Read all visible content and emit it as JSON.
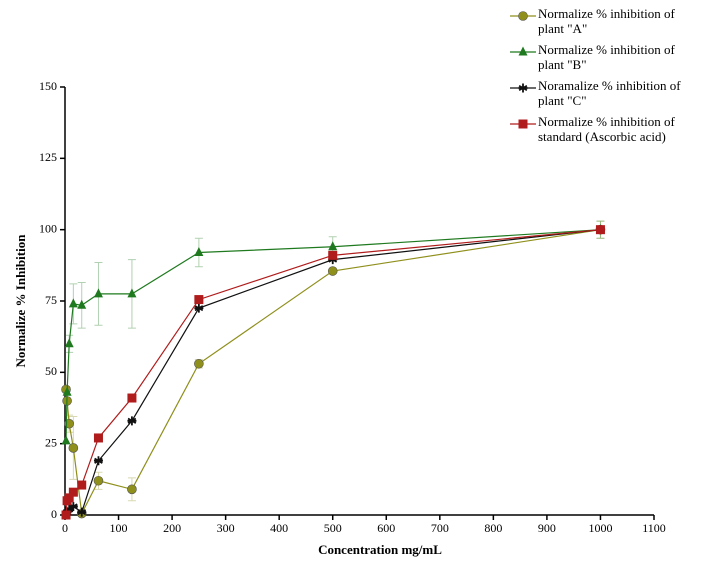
{
  "chart_data": {
    "type": "line",
    "xlabel": "Concentration mg/mL",
    "ylabel": "Normalize % Inhibition",
    "x": [
      1.95,
      3.9,
      7.8,
      15.6,
      31.25,
      62.5,
      125,
      250,
      500,
      1000
    ],
    "xlim": [
      0,
      1100
    ],
    "xticks": [
      0,
      100,
      200,
      300,
      400,
      500,
      600,
      700,
      800,
      900,
      1000,
      1100
    ],
    "ylim": [
      0,
      150
    ],
    "yticks": [
      0,
      25,
      50,
      75,
      100,
      125,
      150
    ],
    "series": [
      {
        "name": "Normalize % inhibition of plant \"A\"",
        "color": "#8f8f1c",
        "marker": "circle",
        "values": [
          44,
          40,
          32,
          23.5,
          0.5,
          12,
          9,
          53,
          85.5,
          100
        ],
        "errors": [
          null,
          null,
          3,
          11,
          null,
          3,
          4,
          1.5,
          null,
          3
        ]
      },
      {
        "name": "Normalize % inhibition of  plant \"B\"",
        "color": "#1f7a1f",
        "marker": "triangle",
        "values": [
          26,
          43,
          60,
          74,
          73.5,
          77.5,
          77.5,
          92,
          94,
          100
        ],
        "errors": [
          null,
          null,
          3,
          7,
          8,
          11,
          12,
          5,
          3.5,
          3
        ]
      },
      {
        "name": "Noramalize % inhibition of plant \"C\"",
        "color": "#111111",
        "marker": "star",
        "values": [
          0,
          1,
          2,
          3,
          1,
          19,
          33,
          72.5,
          89.5,
          100
        ],
        "errors": [
          null,
          null,
          null,
          null,
          null,
          null,
          null,
          null,
          null,
          null
        ]
      },
      {
        "name": "Normalize % inhibition of standard (Ascorbic acid)",
        "color": "#b01c1c",
        "marker": "square",
        "values": [
          0,
          5,
          6,
          8,
          10.5,
          27,
          41,
          75.5,
          91,
          100
        ],
        "errors": [
          null,
          null,
          null,
          null,
          null,
          null,
          null,
          null,
          null,
          null
        ]
      }
    ]
  }
}
